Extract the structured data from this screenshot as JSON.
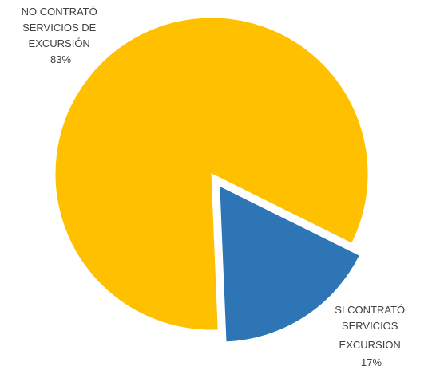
{
  "chart_data": {
    "type": "pie",
    "exploded_slice": 1,
    "series": [
      {
        "slices": [
          {
            "label_lines": [
              "NO CONTRATÓ",
              "SERVICIOS DE",
              "EXCURSIÓN"
            ],
            "value": 83,
            "value_label": "83%",
            "color": "#FFC000"
          },
          {
            "label_lines": [
              "SI CONTRATÓ",
              "SERVICIOS",
              "EXCURSION"
            ],
            "value": 17,
            "value_label": "17%",
            "color": "#2E75B6"
          }
        ]
      }
    ]
  }
}
